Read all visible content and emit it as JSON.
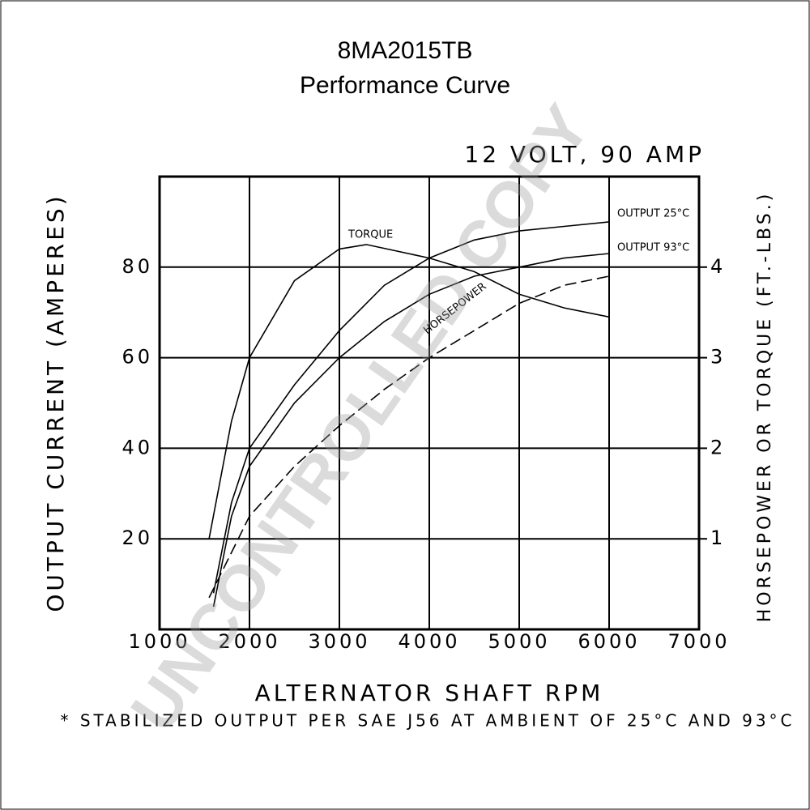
{
  "chart_data": {
    "type": "line",
    "title": "8MA2015TB",
    "subtitle": "Performance Curve",
    "rating": "12 VOLT, 90 AMP",
    "xlabel": "ALTERNATOR SHAFT RPM",
    "ylabel": "OUTPUT CURRENT (AMPERES)",
    "y2label": "HORSEPOWER OR TORQUE (FT.-LBS.)",
    "footnote": "* STABILIZED OUTPUT PER SAE J56 AT AMBIENT OF 25°C AND 93°C",
    "watermark": "UNCONTROLLED COPY",
    "xlim": [
      1000,
      7000
    ],
    "xticks": [
      1000,
      2000,
      3000,
      4000,
      5000,
      6000,
      7000
    ],
    "ylim": [
      0,
      100
    ],
    "yticks": [
      20,
      40,
      60,
      80
    ],
    "y2lim": [
      0,
      5
    ],
    "y2ticks": [
      1,
      2,
      3,
      4
    ],
    "grid": true,
    "series": [
      {
        "name": "OUTPUT 25°C",
        "color": "#000000",
        "dash": false,
        "x": [
          1600,
          1800,
          2000,
          2500,
          3000,
          3500,
          4000,
          4500,
          5000,
          5500,
          6000
        ],
        "values": [
          8,
          28,
          40,
          54,
          66,
          76,
          82,
          86,
          88,
          89,
          90
        ]
      },
      {
        "name": "OUTPUT 93°C",
        "color": "#000000",
        "dash": false,
        "x": [
          1600,
          1800,
          2000,
          2500,
          3000,
          3500,
          4000,
          4500,
          5000,
          5500,
          6000
        ],
        "values": [
          5,
          25,
          36,
          50,
          60,
          68,
          74,
          78,
          80,
          82,
          83
        ]
      },
      {
        "name": "TORQUE",
        "color": "#000000",
        "dash": false,
        "axis": "y2",
        "x": [
          1550,
          1800,
          2000,
          2500,
          3000,
          3300,
          4000,
          4500,
          5000,
          5500,
          6000
        ],
        "values": [
          1.0,
          2.3,
          3.0,
          3.85,
          4.2,
          4.25,
          4.1,
          3.95,
          3.7,
          3.55,
          3.45
        ]
      },
      {
        "name": "HORSEPOWER",
        "color": "#000000",
        "dash": true,
        "axis": "y2",
        "x": [
          1550,
          2000,
          2500,
          3000,
          3500,
          4000,
          4500,
          5000,
          5500,
          6000
        ],
        "values": [
          0.35,
          1.25,
          1.8,
          2.25,
          2.65,
          3.0,
          3.3,
          3.6,
          3.8,
          3.9
        ]
      }
    ]
  }
}
